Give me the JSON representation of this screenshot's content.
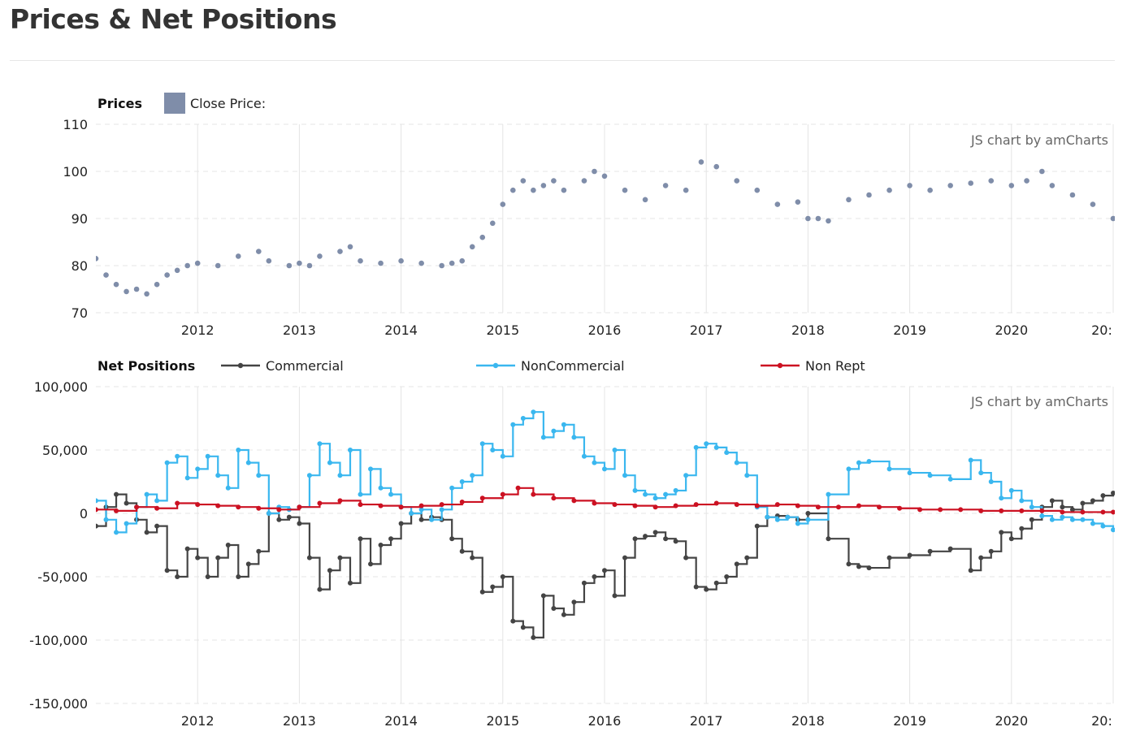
{
  "header": {
    "title": "Prices & Net Positions"
  },
  "colors": {
    "price": "#7f8da9",
    "commercial": "#444444",
    "noncommercial": "#3ab7ef",
    "nonrept": "#cc1122",
    "grid": "#e4e4e4"
  },
  "chart_data": [
    {
      "type": "scatter",
      "title": "Prices",
      "credit": "JS chart by amCharts",
      "series": [
        {
          "name": "Close Price:",
          "color": "#7f8da9",
          "x": [
            2011.0,
            2011.1,
            2011.2,
            2011.3,
            2011.4,
            2011.5,
            2011.6,
            2011.7,
            2011.8,
            2011.9,
            2012.0,
            2012.2,
            2012.4,
            2012.6,
            2012.7,
            2012.9,
            2013.0,
            2013.1,
            2013.2,
            2013.4,
            2013.5,
            2013.6,
            2013.8,
            2014.0,
            2014.2,
            2014.4,
            2014.5,
            2014.6,
            2014.7,
            2014.8,
            2014.9,
            2015.0,
            2015.1,
            2015.2,
            2015.3,
            2015.4,
            2015.5,
            2015.6,
            2015.8,
            2015.9,
            2016.0,
            2016.2,
            2016.4,
            2016.6,
            2016.8,
            2016.95,
            2017.1,
            2017.3,
            2017.5,
            2017.7,
            2017.9,
            2018.0,
            2018.1,
            2018.2,
            2018.4,
            2018.6,
            2018.8,
            2019.0,
            2019.2,
            2019.4,
            2019.6,
            2019.8,
            2020.0,
            2020.15,
            2020.3,
            2020.4,
            2020.6,
            2020.8,
            2021.0
          ],
          "y": [
            81.5,
            78,
            76,
            74.5,
            75,
            74,
            76,
            78,
            79,
            80,
            80.5,
            80,
            82,
            83,
            81,
            80,
            80.5,
            80,
            82,
            83,
            84,
            81,
            80.5,
            81,
            80.5,
            80,
            80.5,
            81,
            84,
            86,
            89,
            93,
            96,
            98,
            96,
            97,
            98,
            96,
            98,
            100,
            99,
            96,
            94,
            97,
            96,
            102,
            101,
            98,
            96,
            93,
            93.5,
            90,
            90,
            89.5,
            94,
            95,
            96,
            97,
            96,
            97,
            97.5,
            98,
            97,
            98,
            100,
            97,
            95,
            93,
            90
          ]
        }
      ],
      "xlabels": [
        "2012",
        "2013",
        "2014",
        "2015",
        "2016",
        "2017",
        "2018",
        "2019",
        "2020",
        "20:"
      ],
      "yticks": [
        "110",
        "100",
        "90",
        "80",
        "70"
      ],
      "ylim": [
        70,
        110
      ],
      "xlim": [
        2011.0,
        2021.0
      ],
      "grid": true,
      "legend_position": "top-left"
    },
    {
      "type": "line",
      "title": "Net Positions",
      "credit": "JS chart by amCharts",
      "series": [
        {
          "name": "Commercial",
          "color": "#444444",
          "x": [
            2011.0,
            2011.1,
            2011.2,
            2011.3,
            2011.4,
            2011.5,
            2011.6,
            2011.7,
            2011.8,
            2011.9,
            2012.0,
            2012.1,
            2012.2,
            2012.3,
            2012.4,
            2012.5,
            2012.6,
            2012.7,
            2012.8,
            2012.9,
            2013.0,
            2013.1,
            2013.2,
            2013.3,
            2013.4,
            2013.5,
            2013.6,
            2013.7,
            2013.8,
            2013.9,
            2014.0,
            2014.1,
            2014.2,
            2014.3,
            2014.4,
            2014.5,
            2014.6,
            2014.7,
            2014.8,
            2014.9,
            2015.0,
            2015.1,
            2015.2,
            2015.3,
            2015.4,
            2015.5,
            2015.6,
            2015.7,
            2015.8,
            2015.9,
            2016.0,
            2016.1,
            2016.2,
            2016.3,
            2016.4,
            2016.5,
            2016.6,
            2016.7,
            2016.8,
            2016.9,
            2017.0,
            2017.1,
            2017.2,
            2017.3,
            2017.4,
            2017.5,
            2017.6,
            2017.7,
            2017.8,
            2017.9,
            2018.0,
            2018.2,
            2018.4,
            2018.5,
            2018.6,
            2018.8,
            2019.0,
            2019.2,
            2019.4,
            2019.6,
            2019.7,
            2019.8,
            2019.9,
            2020.0,
            2020.1,
            2020.2,
            2020.3,
            2020.4,
            2020.5,
            2020.6,
            2020.7,
            2020.8,
            2020.9,
            2021.0
          ],
          "y": [
            -10000,
            5000,
            15000,
            8000,
            -5000,
            -15000,
            -10000,
            -45000,
            -50000,
            -28000,
            -35000,
            -50000,
            -35000,
            -25000,
            -50000,
            -40000,
            -30000,
            0,
            -5000,
            -3000,
            -8000,
            -35000,
            -60000,
            -45000,
            -35000,
            -55000,
            -20000,
            -40000,
            -25000,
            -20000,
            -8000,
            0,
            -5000,
            -3000,
            -5000,
            -20000,
            -30000,
            -35000,
            -62000,
            -58000,
            -50000,
            -85000,
            -90000,
            -98000,
            -65000,
            -75000,
            -80000,
            -70000,
            -55000,
            -50000,
            -45000,
            -65000,
            -35000,
            -20000,
            -18000,
            -15000,
            -20000,
            -22000,
            -35000,
            -58000,
            -60000,
            -55000,
            -50000,
            -40000,
            -35000,
            -10000,
            -3000,
            -2000,
            -3000,
            -5000,
            0,
            -20000,
            -40000,
            -42000,
            -43000,
            -35000,
            -33000,
            -30000,
            -28000,
            -45000,
            -35000,
            -30000,
            -15000,
            -20000,
            -12000,
            -5000,
            5000,
            10000,
            5000,
            3000,
            8000,
            10000,
            14000,
            16000
          ]
        },
        {
          "name": "NonCommercial",
          "color": "#3ab7ef",
          "x": [
            2011.0,
            2011.1,
            2011.2,
            2011.3,
            2011.4,
            2011.5,
            2011.6,
            2011.7,
            2011.8,
            2011.9,
            2012.0,
            2012.1,
            2012.2,
            2012.3,
            2012.4,
            2012.5,
            2012.6,
            2012.7,
            2012.8,
            2012.9,
            2013.0,
            2013.1,
            2013.2,
            2013.3,
            2013.4,
            2013.5,
            2013.6,
            2013.7,
            2013.8,
            2013.9,
            2014.0,
            2014.1,
            2014.2,
            2014.3,
            2014.4,
            2014.5,
            2014.6,
            2014.7,
            2014.8,
            2014.9,
            2015.0,
            2015.1,
            2015.2,
            2015.3,
            2015.4,
            2015.5,
            2015.6,
            2015.7,
            2015.8,
            2015.9,
            2016.0,
            2016.1,
            2016.2,
            2016.3,
            2016.4,
            2016.5,
            2016.6,
            2016.7,
            2016.8,
            2016.9,
            2017.0,
            2017.1,
            2017.2,
            2017.3,
            2017.4,
            2017.5,
            2017.6,
            2017.7,
            2017.8,
            2017.9,
            2018.0,
            2018.2,
            2018.4,
            2018.5,
            2018.6,
            2018.8,
            2019.0,
            2019.2,
            2019.4,
            2019.6,
            2019.7,
            2019.8,
            2019.9,
            2020.0,
            2020.1,
            2020.2,
            2020.3,
            2020.4,
            2020.5,
            2020.6,
            2020.7,
            2020.8,
            2020.9,
            2021.0
          ],
          "y": [
            10000,
            -5000,
            -15000,
            -8000,
            5000,
            15000,
            10000,
            40000,
            45000,
            28000,
            35000,
            45000,
            30000,
            20000,
            50000,
            40000,
            30000,
            0,
            5000,
            3000,
            5000,
            30000,
            55000,
            40000,
            30000,
            50000,
            15000,
            35000,
            20000,
            15000,
            5000,
            0,
            3000,
            -5000,
            3000,
            20000,
            25000,
            30000,
            55000,
            50000,
            45000,
            70000,
            75000,
            80000,
            60000,
            65000,
            70000,
            60000,
            45000,
            40000,
            35000,
            50000,
            30000,
            18000,
            15000,
            12000,
            15000,
            18000,
            30000,
            52000,
            55000,
            52000,
            48000,
            40000,
            30000,
            5000,
            -3000,
            -5000,
            -3000,
            -8000,
            -5000,
            15000,
            35000,
            40000,
            41000,
            35000,
            32000,
            30000,
            27000,
            42000,
            32000,
            25000,
            12000,
            18000,
            10000,
            5000,
            -2000,
            -5000,
            -3000,
            -5000,
            -5000,
            -8000,
            -10000,
            -13000
          ]
        },
        {
          "name": "Non Rept",
          "color": "#cc1122",
          "x": [
            2011.0,
            2011.2,
            2011.4,
            2011.6,
            2011.8,
            2012.0,
            2012.2,
            2012.4,
            2012.6,
            2012.8,
            2013.0,
            2013.2,
            2013.4,
            2013.6,
            2013.8,
            2014.0,
            2014.2,
            2014.4,
            2014.6,
            2014.8,
            2015.0,
            2015.15,
            2015.3,
            2015.5,
            2015.7,
            2015.9,
            2016.1,
            2016.3,
            2016.5,
            2016.7,
            2016.9,
            2017.1,
            2017.3,
            2017.5,
            2017.7,
            2017.9,
            2018.1,
            2018.3,
            2018.5,
            2018.7,
            2018.9,
            2019.1,
            2019.3,
            2019.5,
            2019.7,
            2019.9,
            2020.1,
            2020.3,
            2020.5,
            2020.7,
            2020.9,
            2021.0
          ],
          "y": [
            3000,
            2000,
            5000,
            4000,
            8000,
            7000,
            6000,
            5000,
            4000,
            3000,
            5000,
            8000,
            10000,
            7000,
            6000,
            5000,
            6000,
            7000,
            9000,
            12000,
            15000,
            20000,
            15000,
            12000,
            10000,
            8000,
            7000,
            6000,
            5000,
            6000,
            7000,
            8000,
            7000,
            6000,
            7000,
            6000,
            5000,
            5000,
            6000,
            5000,
            4000,
            3000,
            3000,
            3000,
            2000,
            2000,
            2000,
            2000,
            1000,
            1000,
            1000,
            1000
          ]
        }
      ],
      "xlabels": [
        "2012",
        "2013",
        "2014",
        "2015",
        "2016",
        "2017",
        "2018",
        "2019",
        "2020",
        "20:"
      ],
      "yticks": [
        "100,000",
        "50,000",
        "0",
        "-50,000",
        "-100,000",
        "-150,000"
      ],
      "ylim": [
        -150000,
        100000
      ],
      "xlim": [
        2011.0,
        2021.0
      ],
      "grid": true,
      "legend_position": "top-left"
    }
  ]
}
